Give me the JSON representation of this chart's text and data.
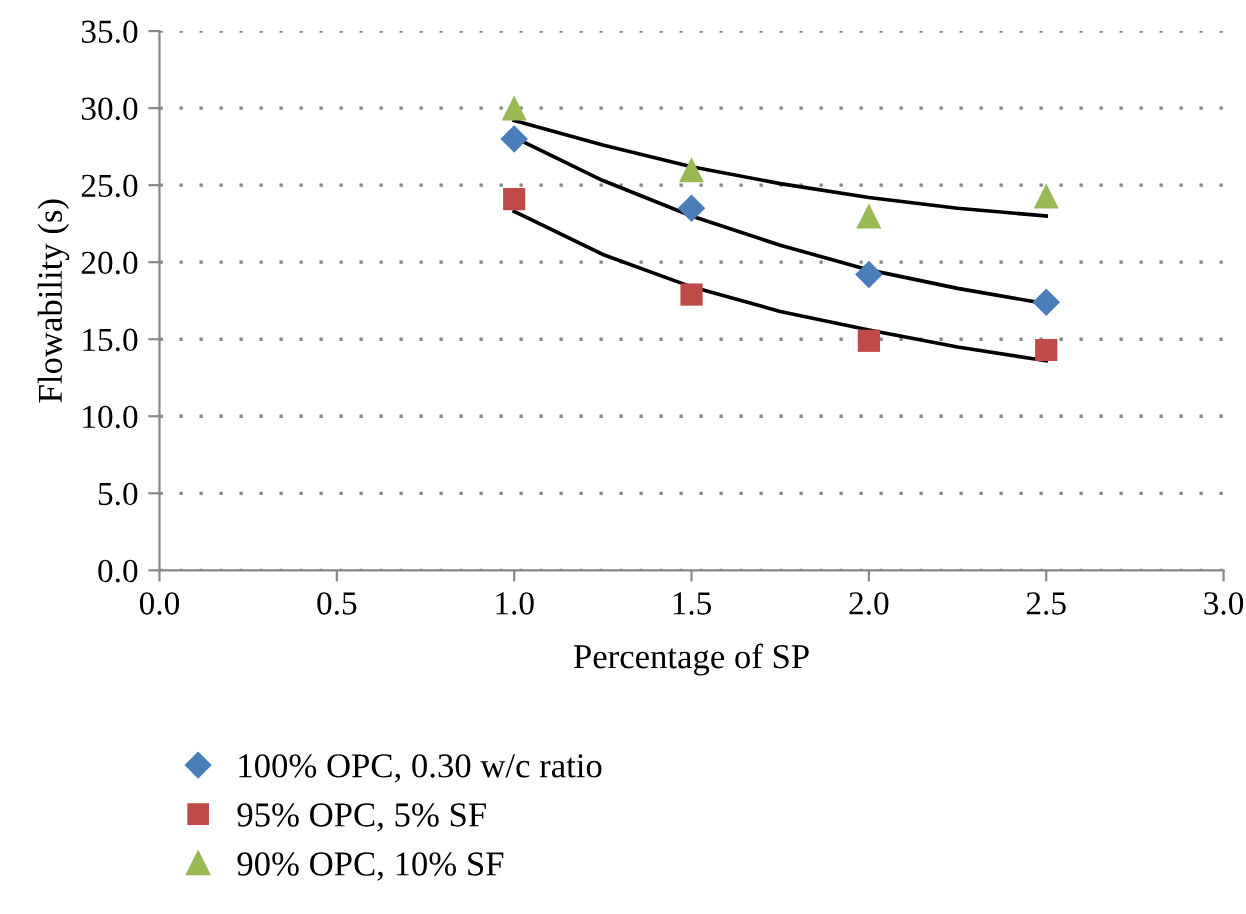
{
  "chart_data": {
    "type": "scatter",
    "xlabel": "Percentage of SP",
    "ylabel": "Flowability (s)",
    "x": [
      1.0,
      1.5,
      2.0,
      2.5
    ],
    "series": [
      {
        "name": "100% OPC, 0.30 w/c ratio",
        "color": "#4a7ebb",
        "marker": "diamond",
        "values": [
          28.0,
          23.5,
          19.2,
          17.4
        ]
      },
      {
        "name": "95% OPC, 5% SF",
        "color": "#be4b48",
        "marker": "square",
        "values": [
          24.1,
          17.9,
          14.9,
          14.3
        ]
      },
      {
        "name": "90% OPC, 10% SF",
        "color": "#98b954",
        "marker": "triangle",
        "values": [
          30.0,
          26.0,
          23.0,
          24.3
        ]
      },
      {
        "type": "line",
        "color": "#000000",
        "x": [
          1.0,
          1.25,
          1.5,
          1.75,
          2.0,
          2.25,
          2.5
        ],
        "values": [
          29.2,
          27.6,
          26.2,
          25.1,
          24.2,
          23.5,
          23.0
        ]
      },
      {
        "type": "line",
        "color": "#000000",
        "x": [
          1.0,
          1.25,
          1.5,
          1.75,
          2.0,
          2.25,
          2.5
        ],
        "values": [
          28.1,
          25.3,
          23.0,
          21.1,
          19.5,
          18.3,
          17.3
        ]
      },
      {
        "type": "line",
        "color": "#000000",
        "x": [
          1.0,
          1.25,
          1.5,
          1.75,
          2.0,
          2.25,
          2.5
        ],
        "values": [
          23.3,
          20.5,
          18.4,
          16.8,
          15.6,
          14.5,
          13.6
        ]
      }
    ],
    "xlim": [
      0.0,
      3.0
    ],
    "xticks": [
      {
        "value": 0,
        "label": "0.0"
      },
      {
        "value": 0.5,
        "label": "0.5"
      },
      {
        "value": 1,
        "label": "1.0"
      },
      {
        "value": 1.5,
        "label": "1.5"
      },
      {
        "value": 2,
        "label": "2.0"
      },
      {
        "value": 2.5,
        "label": "2.5"
      },
      {
        "value": 3,
        "label": "3.0"
      }
    ],
    "ylim": [
      0.0,
      35.0
    ],
    "yticks": [
      {
        "value": 0,
        "label": "0.0"
      },
      {
        "value": 5,
        "label": "5.0"
      },
      {
        "value": 10,
        "label": "10.0"
      },
      {
        "value": 15,
        "label": "15.0"
      },
      {
        "value": 20,
        "label": "20.0"
      },
      {
        "value": 25,
        "label": "25.0"
      },
      {
        "value": 30,
        "label": "30.0"
      },
      {
        "value": 35,
        "label": "35.0"
      }
    ],
    "grid": "y",
    "legend": "bottom left"
  }
}
